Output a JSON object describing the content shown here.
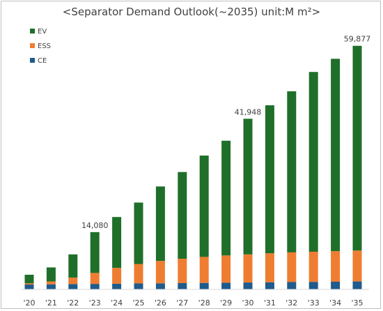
{
  "chart_data": {
    "type": "bar",
    "stacked": true,
    "title": "<Separator Demand Outlook(~2035) unit:M m²>",
    "categories": [
      "'20",
      "'21",
      "'22",
      "'23",
      "'24",
      "'25",
      "'26",
      "'27",
      "'28",
      "'29",
      "'30",
      "'31",
      "'32",
      "'33",
      "'34",
      "'35"
    ],
    "series": [
      {
        "name": "CE",
        "color": "#1f5b8c",
        "values": [
          1200,
          1250,
          1300,
          1350,
          1400,
          1450,
          1500,
          1550,
          1600,
          1650,
          1700,
          1750,
          1800,
          1850,
          1900,
          1950
        ]
      },
      {
        "name": "ESS",
        "color": "#ef7d31",
        "values": [
          300,
          700,
          1600,
          2700,
          3900,
          4800,
          5500,
          6000,
          6400,
          6700,
          6900,
          7100,
          7300,
          7400,
          7500,
          7600
        ]
      },
      {
        "name": "EV",
        "color": "#1f6f2a",
        "values": [
          2100,
          3450,
          5700,
          10030,
          12500,
          15100,
          18300,
          21300,
          24900,
          28200,
          33348,
          36400,
          39600,
          44200,
          47300,
          50327
        ]
      }
    ],
    "data_labels": [
      {
        "category": "'23",
        "text": "14,080"
      },
      {
        "category": "'30",
        "text": "41,948"
      },
      {
        "category": "'35",
        "text": "59,877"
      }
    ],
    "legend": {
      "position": "top-left",
      "order": [
        "EV",
        "ESS",
        "CE"
      ]
    },
    "ylim": [
      0,
      66000
    ],
    "grid": false,
    "xlabel": "",
    "ylabel": ""
  }
}
